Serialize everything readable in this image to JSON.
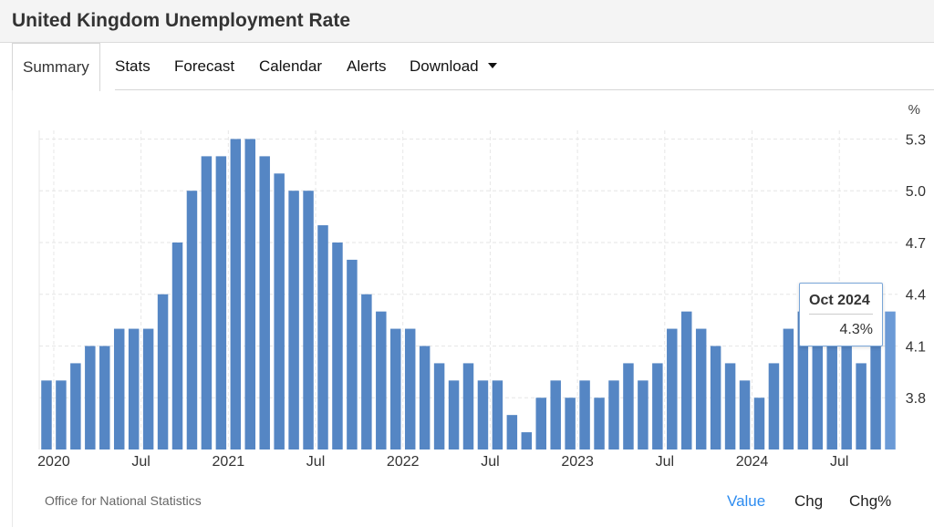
{
  "page": {
    "title": "United Kingdom Unemployment Rate"
  },
  "tabs": [
    {
      "label": "Summary",
      "active": true
    },
    {
      "label": "Stats"
    },
    {
      "label": "Forecast"
    },
    {
      "label": "Calendar"
    },
    {
      "label": "Alerts"
    },
    {
      "label": "Download",
      "icon": "caret-down-icon"
    }
  ],
  "footer": {
    "source": "Office for National Statistics",
    "value_btn": "Value",
    "chg_btn": "Chg",
    "chgpct_btn": "Chg%"
  },
  "tooltip": {
    "date": "Oct 2024",
    "value": "4.3%"
  },
  "colors": {
    "bar": "#5586c4",
    "bar_highlight": "#6b9ad6",
    "accent": "#2d8cf0",
    "grid": "#e6e6e6"
  },
  "chart_data": {
    "type": "bar",
    "unit": "%",
    "ylim": [
      3.5,
      5.35
    ],
    "yticks": [
      "3.8",
      "4.1",
      "4.4",
      "4.7",
      "5.0",
      "5.3"
    ],
    "grid": true,
    "xtick_labels": [
      "2020",
      "Jul",
      "2021",
      "Jul",
      "2022",
      "Jul",
      "2023",
      "Jul",
      "2024",
      "Jul"
    ],
    "xtick_positions": [
      0.5,
      6.5,
      12.5,
      18.5,
      24.5,
      30.5,
      36.5,
      42.5,
      48.5,
      54.5
    ],
    "categories": [
      "Dec 2019",
      "Jan 2020",
      "Feb 2020",
      "Mar 2020",
      "Apr 2020",
      "May 2020",
      "Jun 2020",
      "Jul 2020",
      "Aug 2020",
      "Sep 2020",
      "Oct 2020",
      "Nov 2020",
      "Dec 2020",
      "Jan 2021",
      "Feb 2021",
      "Mar 2021",
      "Apr 2021",
      "May 2021",
      "Jun 2021",
      "Jul 2021",
      "Aug 2021",
      "Sep 2021",
      "Oct 2021",
      "Nov 2021",
      "Dec 2021",
      "Jan 2022",
      "Feb 2022",
      "Mar 2022",
      "Apr 2022",
      "May 2022",
      "Jun 2022",
      "Jul 2022",
      "Aug 2022",
      "Sep 2022",
      "Oct 2022",
      "Nov 2022",
      "Dec 2022",
      "Jan 2023",
      "Feb 2023",
      "Mar 2023",
      "Apr 2023",
      "May 2023",
      "Jun 2023",
      "Jul 2023",
      "Aug 2023",
      "Sep 2023",
      "Oct 2023",
      "Nov 2023",
      "Dec 2023",
      "Jan 2024",
      "Feb 2024",
      "Mar 2024",
      "Apr 2024",
      "May 2024",
      "Jun 2024",
      "Jul 2024",
      "Aug 2024",
      "Sep 2024",
      "Oct 2024"
    ],
    "values": [
      3.9,
      3.9,
      4.0,
      4.1,
      4.1,
      4.2,
      4.2,
      4.2,
      4.4,
      4.7,
      5.0,
      5.2,
      5.2,
      5.3,
      5.3,
      5.2,
      5.1,
      5.0,
      5.0,
      4.8,
      4.7,
      4.6,
      4.4,
      4.3,
      4.2,
      4.2,
      4.1,
      4.0,
      3.9,
      4.0,
      3.9,
      3.9,
      3.7,
      3.6,
      3.8,
      3.9,
      3.8,
      3.9,
      3.8,
      3.9,
      4.0,
      3.9,
      4.0,
      4.2,
      4.3,
      4.2,
      4.1,
      4.0,
      3.9,
      3.8,
      4.0,
      4.2,
      4.3,
      4.4,
      4.2,
      4.1,
      4.0,
      4.2,
      4.3
    ],
    "highlight_index": 58
  }
}
